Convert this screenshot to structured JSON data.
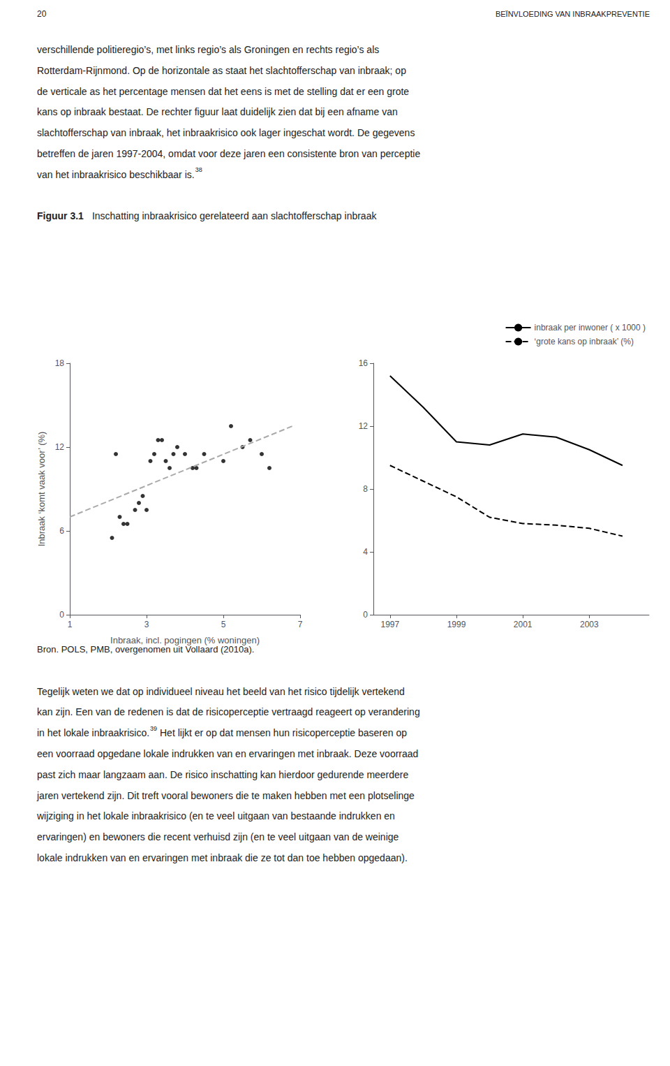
{
  "title": "Inschatting inbraakrisico gerelateerd aan slachtofferschap inbraak",
  "annotations": {
    "header": [
      "20",
      "BEÏNVLOEDING VAN INBRAAKPREVENTIE"
    ],
    "figure_label": "Figuur 3.1",
    "text_above": [
      [
        "verschillende politieregio’s, met links regio’s als Groningen en rechts regio’s als"
      ],
      [
        "Rotterdam-Rijnmond. Op de horizontale as staat het slachtofferschap van inbraak; op"
      ],
      [
        "de verticale as het percentage mensen dat het eens is met de stelling dat er een grote"
      ],
      [
        "kans op inbraak bestaat. De rechter figuur laat duidelijk zien dat bij een afname van"
      ],
      [
        "slachtofferschap van inbraak, het inbraakrisico ook lager ingeschat wordt. De gegevens"
      ],
      [
        "betreffen de jaren 1997-2004, omdat voor deze jaren een consistente bron van perceptie"
      ],
      [
        "van het inbraakrisico beschikbaar is.",
        "38"
      ]
    ],
    "source": "Bron. POLS, PMB, overgenomen uit Vollaard (2010a).",
    "text_below": [
      [
        "Tegelijk weten we dat op individueel niveau het beeld van het risico tijdelijk vertekend"
      ],
      [
        "kan zijn. Een van de redenen is dat de risicoperceptie vertraagd reageert op verandering"
      ],
      [
        "in het lokale inbraakrisico.",
        "39",
        " Het lijkt er op dat mensen hun risicoperceptie baseren op"
      ],
      [
        "een voorraad opgedane lokale indrukken van en ervaringen met inbraak. Deze voorraad"
      ],
      [
        "past zich maar langzaam aan. De risico inschatting kan hierdoor gedurende meerdere"
      ],
      [
        "jaren vertekend zijn. Dit treft vooral bewoners die te maken hebben met een plotselinge"
      ],
      [
        "wijziging in het lokale inbraakrisico (en te veel uitgaan van bestaande indrukken en"
      ],
      [
        "ervaringen) en bewoners die recent verhuisd zijn (en te veel uitgaan van de weinige"
      ],
      [
        "lokale indrukken van en ervaringen met inbraak die ze tot dan toe hebben opgedaan)."
      ]
    ]
  },
  "chart_data": [
    {
      "type": "scatter",
      "x_label": "Inbraak, incl. pogingen (% woningen)",
      "y_label": "Inbraak ‘komt vaak voor’ (%)",
      "xlim": [
        1,
        7
      ],
      "xticks": [
        1,
        3,
        5,
        7
      ],
      "ylim": [
        0,
        18
      ],
      "yticks": [
        0,
        6,
        12,
        18
      ],
      "grid": false,
      "series": [
        {
          "type": "scatter",
          "color": "#000000",
          "x": [
            2.1,
            2.2,
            2.3,
            2.4,
            2.5,
            2.7,
            2.8,
            2.9,
            3.0,
            3.1,
            3.2,
            3.3,
            3.4,
            3.5,
            3.6,
            3.7,
            3.8,
            4.0,
            4.2,
            4.3,
            4.5,
            5.0,
            5.2,
            5.5,
            5.7,
            6.0,
            6.2
          ],
          "values": [
            5.5,
            11.5,
            7.0,
            6.5,
            6.5,
            7.5,
            8.0,
            8.5,
            7.5,
            11.0,
            11.5,
            12.5,
            12.5,
            11.0,
            10.5,
            11.5,
            12.0,
            11.5,
            10.5,
            10.5,
            11.5,
            11.0,
            13.5,
            12.0,
            12.5,
            11.5,
            10.5
          ]
        },
        {
          "type": "line",
          "line_style": "dashed",
          "color": "#aaaaaa",
          "x": [
            1.0,
            6.8
          ],
          "values": [
            7.0,
            13.5
          ]
        }
      ]
    },
    {
      "type": "line",
      "x": [
        1997,
        1998,
        1999,
        2000,
        2001,
        2002,
        2003,
        2004
      ],
      "xlim": [
        1996.5,
        2004.8
      ],
      "xticks": [
        1997,
        1999,
        2001,
        2003
      ],
      "ylim": [
        0,
        16
      ],
      "yticks": [
        0,
        4,
        8,
        12,
        16
      ],
      "grid": false,
      "legend": "upper right",
      "series": [
        {
          "name": "inbraak per inwoner ( x 1000 )",
          "color": "#000000",
          "line_style": "solid",
          "values": [
            15.2,
            13.2,
            11.0,
            10.8,
            11.5,
            11.3,
            10.5,
            9.5
          ]
        },
        {
          "name": "‘grote kans op inbraak’ (%)",
          "color": "#000000",
          "line_style": "dashed",
          "values": [
            9.5,
            8.5,
            7.5,
            6.2,
            5.8,
            5.7,
            5.5,
            5.0
          ]
        }
      ]
    }
  ]
}
